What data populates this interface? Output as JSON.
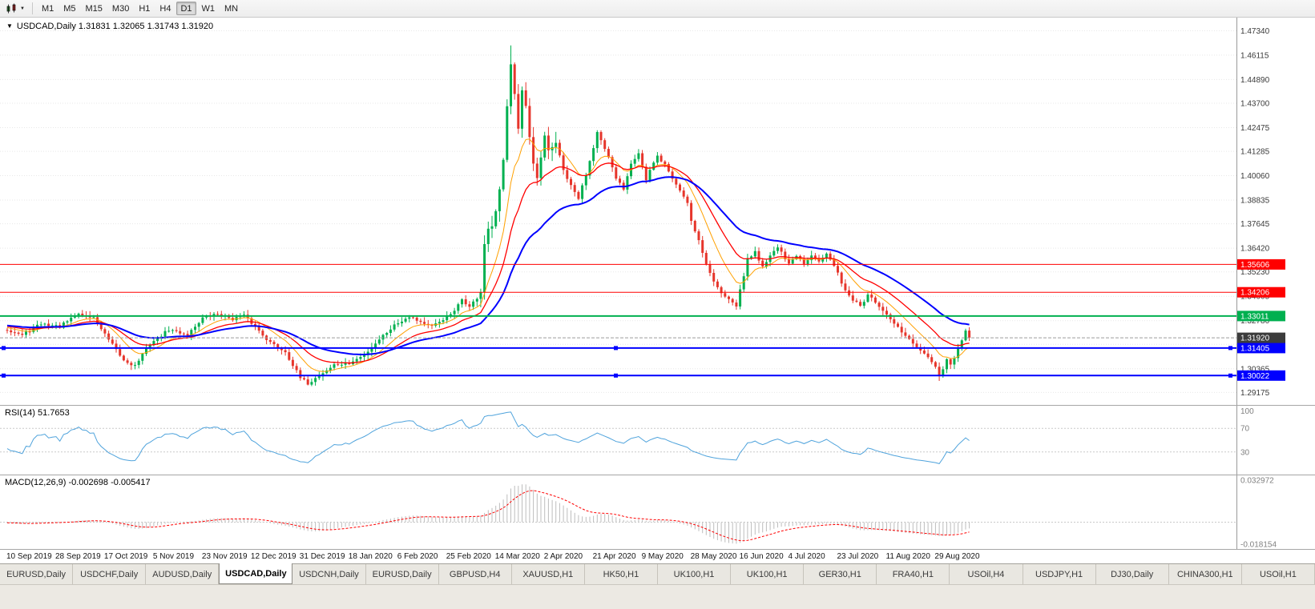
{
  "toolbar": {
    "timeframes": [
      "M1",
      "M5",
      "M15",
      "M30",
      "H1",
      "H4",
      "D1",
      "W1",
      "MN"
    ],
    "active_timeframe": "D1"
  },
  "chart": {
    "title": "USDCAD,Daily 1.31831 1.32065 1.31743 1.31920",
    "price_axis_ticks": [
      "1.47340",
      "1.46115",
      "1.44890",
      "1.43700",
      "1.42475",
      "1.41285",
      "1.40060",
      "1.38835",
      "1.37645",
      "1.36420",
      "1.35230",
      "1.34005",
      "1.32780",
      "1.31590",
      "1.30365",
      "1.29175"
    ],
    "levels": [
      {
        "name": "resistance-upper",
        "price": 1.35606,
        "label": "1.35606",
        "color": "#FF0000",
        "width": 1,
        "handles": false
      },
      {
        "name": "resistance-lower",
        "price": 1.34206,
        "label": "1.34206",
        "color": "#FF0000",
        "width": 1,
        "handles": false
      },
      {
        "name": "pivot-green",
        "price": 1.33011,
        "label": "1.33011",
        "color": "#00B050",
        "width": 2,
        "handles": false
      },
      {
        "name": "support-upper",
        "price": 1.31405,
        "label": "1.31405",
        "color": "#0000FF",
        "width": 2,
        "handles": true
      },
      {
        "name": "support-lower",
        "price": 1.30022,
        "label": "1.30022",
        "color": "#0000FF",
        "width": 2,
        "handles": true
      }
    ],
    "current_price": {
      "label": "1.31920",
      "value": 1.3192,
      "color": "#3C3C3C"
    }
  },
  "rsi_panel": {
    "label": "RSI(14) 51.7653",
    "value": 51.7653,
    "axis_ticks": [
      "100",
      "70",
      "30"
    ],
    "level_lines": [
      70,
      30
    ],
    "line_color": "#4FA3DC"
  },
  "macd_panel": {
    "label": "MACD(12,26,9) -0.002698 -0.005417",
    "macd_value": -0.002698,
    "signal_value": -0.005417,
    "axis_ticks": [
      "0.032972",
      "-0.018154"
    ],
    "axis_max": 0.033,
    "axis_min": -0.0185,
    "histogram_color": "#BDBDBD",
    "signal_color": "#FF0000"
  },
  "date_axis": [
    "10 Sep 2019",
    "28 Sep 2019",
    "17 Oct 2019",
    "5 Nov 2019",
    "23 Nov 2019",
    "12 Dec 2019",
    "31 Dec 2019",
    "18 Jan 2020",
    "6 Feb 2020",
    "25 Feb 2020",
    "14 Mar 2020",
    "2 Apr 2020",
    "21 Apr 2020",
    "9 May 2020",
    "28 May 2020",
    "16 Jun 2020",
    "4 Jul 2020",
    "23 Jul 2020",
    "11 Aug 2020",
    "29 Aug 2020"
  ],
  "tabs": {
    "items": [
      "EURUSD,Daily",
      "USDCHF,Daily",
      "AUDUSD,Daily",
      "USDCAD,Daily",
      "USDCNH,Daily",
      "EURUSD,Daily",
      "GBPUSD,H4",
      "XAUUSD,H1",
      "HK50,H1",
      "UK100,H1",
      "UK100,H1",
      "GER30,H1",
      "FRA40,H1",
      "USOil,H4",
      "USDJPY,H1",
      "DJ30,Daily",
      "CHINA300,H1",
      "USOil,H1"
    ],
    "active_index": 3
  },
  "chart_data": {
    "type": "candlestick",
    "symbol": "USDCAD",
    "timeframe": "Daily",
    "ohlc": {
      "open": 1.31831,
      "high": 1.32065,
      "low": 1.31743,
      "close": 1.3192
    },
    "axis_range": {
      "price_max": 1.48,
      "price_min": 1.2852
    },
    "colors": {
      "up": "#00B050",
      "down": "#E6352B",
      "ma_fast": "#FFA000",
      "ma_mid": "#FF0000",
      "ma_slow": "#0000FF"
    },
    "moving_averages": [
      {
        "period": 10,
        "method": "ema",
        "color": "#FFA000",
        "width": 1
      },
      {
        "period": 20,
        "method": "ema",
        "color": "#FF0000",
        "width": 1.3
      },
      {
        "period": 40,
        "method": "ema",
        "color": "#0000FF",
        "width": 2
      }
    ],
    "horizontal_levels": [
      1.35606,
      1.34206,
      1.33011,
      1.31405,
      1.30022
    ],
    "indicators": [
      {
        "name": "RSI",
        "period": 14,
        "value": 51.7653
      },
      {
        "name": "MACD",
        "fast": 12,
        "slow": 26,
        "signal": 9,
        "macd": -0.002698,
        "signal_line": -0.005417
      }
    ],
    "price_anchors": [
      [
        -60,
        1.323
      ],
      [
        -30,
        1.328
      ],
      [
        -10,
        1.3255
      ],
      [
        0,
        1.3235
      ],
      [
        4,
        1.3205
      ],
      [
        9,
        1.3262
      ],
      [
        14,
        1.3248
      ],
      [
        19,
        1.3312
      ],
      [
        23,
        1.3292
      ],
      [
        27,
        1.318
      ],
      [
        31,
        1.3078
      ],
      [
        34,
        1.3052
      ],
      [
        38,
        1.3162
      ],
      [
        43,
        1.3232
      ],
      [
        48,
        1.3208
      ],
      [
        52,
        1.3292
      ],
      [
        56,
        1.3312
      ],
      [
        60,
        1.3288
      ],
      [
        63,
        1.3302
      ],
      [
        66,
        1.3248
      ],
      [
        70,
        1.3168
      ],
      [
        74,
        1.3122
      ],
      [
        78,
        1.2988
      ],
      [
        80,
        1.2962
      ],
      [
        83,
        1.3002
      ],
      [
        87,
        1.3056
      ],
      [
        91,
        1.3062
      ],
      [
        95,
        1.3106
      ],
      [
        99,
        1.3186
      ],
      [
        103,
        1.3256
      ],
      [
        107,
        1.3302
      ],
      [
        110,
        1.3272
      ],
      [
        113,
        1.3246
      ],
      [
        116,
        1.3286
      ],
      [
        119,
        1.3322
      ],
      [
        121,
        1.3386
      ],
      [
        123,
        1.3346
      ],
      [
        125,
        1.3392
      ],
      [
        126,
        1.3422
      ],
      [
        127,
        1.3662
      ],
      [
        128,
        1.3732
      ],
      [
        129,
        1.3752
      ],
      [
        130,
        1.3822
      ],
      [
        131,
        1.3932
      ],
      [
        132,
        1.4082
      ],
      [
        133,
        1.4362
      ],
      [
        134,
        1.4572
      ],
      [
        135,
        1.4422
      ],
      [
        136,
        1.4242
      ],
      [
        137,
        1.4432
      ],
      [
        138,
        1.4352
      ],
      [
        139,
        1.4192
      ],
      [
        140,
        1.4062
      ],
      [
        141,
        1.3992
      ],
      [
        142,
        1.4092
      ],
      [
        143,
        1.4202
      ],
      [
        144,
        1.4132
      ],
      [
        146,
        1.4172
      ],
      [
        148,
        1.4032
      ],
      [
        150,
        1.3952
      ],
      [
        152,
        1.3892
      ],
      [
        154,
        1.4012
      ],
      [
        156,
        1.4152
      ],
      [
        157,
        1.4232
      ],
      [
        158,
        1.4182
      ],
      [
        160,
        1.4092
      ],
      [
        162,
        1.3992
      ],
      [
        164,
        1.3942
      ],
      [
        166,
        1.4072
      ],
      [
        168,
        1.4122
      ],
      [
        170,
        1.3982
      ],
      [
        171,
        1.4032
      ],
      [
        173,
        1.4102
      ],
      [
        175,
        1.4062
      ],
      [
        177,
        1.3992
      ],
      [
        179,
        1.3932
      ],
      [
        181,
        1.3872
      ],
      [
        182,
        1.3782
      ],
      [
        184,
        1.3682
      ],
      [
        186,
        1.3562
      ],
      [
        188,
        1.3472
      ],
      [
        190,
        1.3422
      ],
      [
        192,
        1.3392
      ],
      [
        193,
        1.3362
      ],
      [
        194,
        1.3356
      ],
      [
        196,
        1.3502
      ],
      [
        197,
        1.3592
      ],
      [
        199,
        1.3622
      ],
      [
        201,
        1.3552
      ],
      [
        203,
        1.3602
      ],
      [
        205,
        1.3652
      ],
      [
        207,
        1.3582
      ],
      [
        208,
        1.3562
      ],
      [
        210,
        1.3602
      ],
      [
        212,
        1.3562
      ],
      [
        214,
        1.3612
      ],
      [
        216,
        1.3582
      ],
      [
        218,
        1.3612
      ],
      [
        220,
        1.3552
      ],
      [
        221,
        1.3512
      ],
      [
        223,
        1.3432
      ],
      [
        225,
        1.3382
      ],
      [
        227,
        1.3352
      ],
      [
        229,
        1.3402
      ],
      [
        231,
        1.3372
      ],
      [
        233,
        1.3322
      ],
      [
        234,
        1.3302
      ],
      [
        236,
        1.3262
      ],
      [
        238,
        1.3222
      ],
      [
        240,
        1.3182
      ],
      [
        242,
        1.3142
      ],
      [
        244,
        1.3112
      ],
      [
        246,
        1.3062
      ],
      [
        247,
        1.3042
      ],
      [
        248,
        1.3002
      ],
      [
        249,
        1.3032
      ],
      [
        250,
        1.3082
      ],
      [
        251,
        1.3052
      ],
      [
        252,
        1.3092
      ],
      [
        253,
        1.3132
      ],
      [
        254,
        1.3182
      ],
      [
        255,
        1.3222
      ],
      [
        256,
        1.3192
      ]
    ]
  }
}
